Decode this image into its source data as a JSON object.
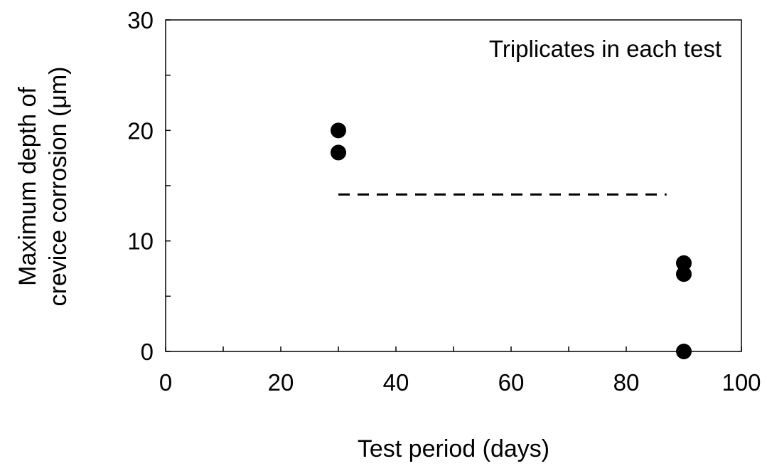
{
  "chart_data": {
    "type": "scatter",
    "xlabel": "Test period (days)",
    "ylabel_lines": [
      "Maximum depth of",
      "crevice corrosion (μm)"
    ],
    "annotation": "Triplicates in each test",
    "xlim": [
      0,
      100
    ],
    "ylim": [
      0,
      30
    ],
    "x_ticks": [
      0,
      20,
      40,
      60,
      80,
      100
    ],
    "x_minor_ticks": [
      10,
      30,
      50,
      70,
      90
    ],
    "y_ticks": [
      0,
      10,
      20,
      30
    ],
    "y_minor_ticks": [
      5,
      15,
      25
    ],
    "grid": false,
    "series": [
      {
        "marker": "circle",
        "color": "#000000",
        "points": [
          {
            "x": 30,
            "y": 20
          },
          {
            "x": 30,
            "y": 18
          },
          {
            "x": 90,
            "y": 8
          },
          {
            "x": 90,
            "y": 7
          },
          {
            "x": 90,
            "y": 0
          }
        ]
      }
    ],
    "reference_line": {
      "style": "dashed",
      "color": "#000000",
      "x": [
        30,
        87
      ],
      "y": 14.2
    }
  }
}
